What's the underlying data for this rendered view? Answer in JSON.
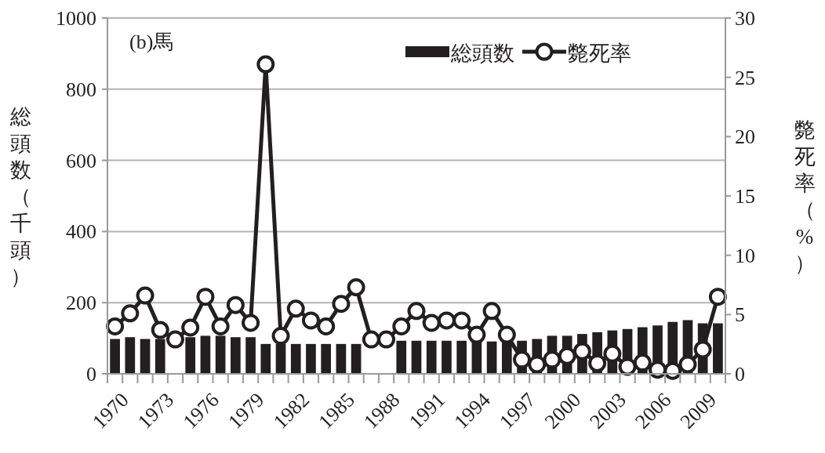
{
  "chart_data": {
    "type": "bar",
    "ylabel": "総頭数（千頭）",
    "y2label": "斃死率（%）",
    "annotations": [
      "(b)馬"
    ],
    "categories": [
      "1970",
      null,
      null,
      "1973",
      null,
      null,
      "1976",
      null,
      null,
      "1979",
      null,
      null,
      "1982",
      null,
      null,
      "1985",
      null,
      null,
      "1988",
      null,
      null,
      "1991",
      null,
      null,
      "1994",
      null,
      null,
      "1997",
      null,
      null,
      "2000",
      null,
      null,
      "2003",
      null,
      null,
      "2006",
      null,
      null,
      "2009",
      null
    ],
    "ylim": [
      0,
      1000
    ],
    "yticks": [
      0,
      200,
      400,
      600,
      800,
      1000
    ],
    "y2lim": [
      0,
      30
    ],
    "y2ticks": [
      0,
      5,
      10,
      15,
      20,
      25,
      30
    ],
    "grid": "y",
    "legend": "top right",
    "series": [
      {
        "name": "総頭数",
        "color": "#231f20",
        "values": [
          98,
          103,
          98,
          98,
          null,
          103,
          107,
          107,
          103,
          103,
          84,
          84,
          84,
          84,
          84,
          84,
          84,
          null,
          null,
          93,
          93,
          93,
          93,
          93,
          93,
          91,
          93,
          93,
          98,
          107,
          107,
          112,
          117,
          122,
          126,
          131,
          136,
          146,
          151,
          142,
          142
        ]
      },
      {
        "name": "斃死率",
        "type": "line",
        "axis": "y2",
        "color": "#231f20",
        "marker": "circle",
        "line_style": "solid",
        "values": [
          4.0,
          5.1,
          6.6,
          3.7,
          2.9,
          3.9,
          6.5,
          4.0,
          5.8,
          4.3,
          26.1,
          3.2,
          5.5,
          4.5,
          4.0,
          5.9,
          7.3,
          2.9,
          2.9,
          4.0,
          5.3,
          4.3,
          4.5,
          4.5,
          3.3,
          5.3,
          3.3,
          1.2,
          0.8,
          1.2,
          1.5,
          1.9,
          0.9,
          1.7,
          0.6,
          0.95,
          0.35,
          0.25,
          0.8,
          2.05,
          6.5
        ]
      }
    ]
  }
}
